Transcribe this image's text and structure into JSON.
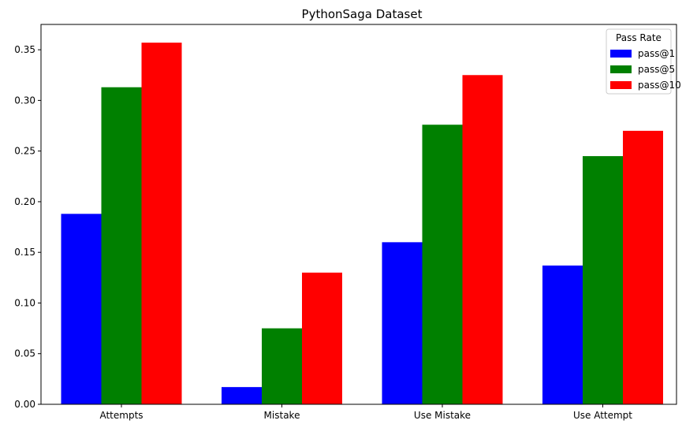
{
  "chart_data": {
    "type": "bar",
    "title": "PythonSaga Dataset",
    "xlabel": "",
    "ylabel": "",
    "categories": [
      "Attempts",
      "Mistake",
      "Use Mistake",
      "Use Attempt"
    ],
    "series": [
      {
        "name": "pass@1",
        "color": "#0000ff",
        "values": [
          0.188,
          0.017,
          0.16,
          0.137
        ]
      },
      {
        "name": "pass@5",
        "color": "#008000",
        "values": [
          0.313,
          0.075,
          0.276,
          0.245
        ]
      },
      {
        "name": "pass@10",
        "color": "#ff0000",
        "values": [
          0.357,
          0.13,
          0.325,
          0.27
        ]
      }
    ],
    "ylim": [
      0,
      0.375
    ],
    "yticks": [
      "0.00",
      "0.05",
      "0.10",
      "0.15",
      "0.20",
      "0.25",
      "0.30",
      "0.35"
    ],
    "grid": false,
    "legend": {
      "title": "Pass Rate",
      "placement": "top-right"
    }
  }
}
